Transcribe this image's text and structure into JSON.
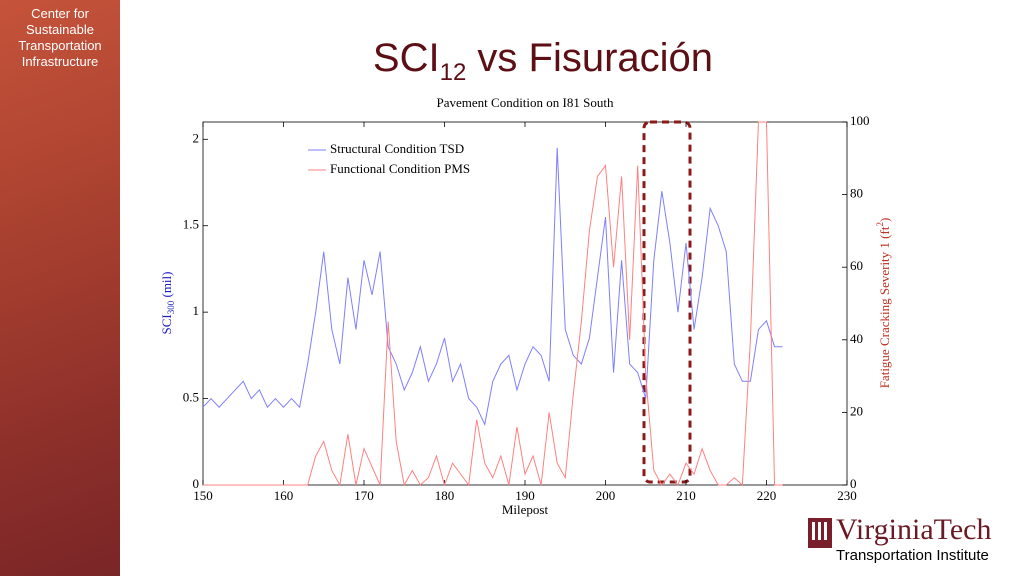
{
  "sidebar": {
    "text": "Center for Sustainable Transportation Infrastructure"
  },
  "slide_title": {
    "main": "SCI",
    "sub": "12",
    "rest": " vs Fisuración"
  },
  "logo": {
    "name": "VirginiaTech",
    "unit": "Transportation Institute"
  },
  "chart_data": {
    "type": "line",
    "title": "Pavement Condition on I81 South",
    "x_label": "Milepost",
    "y_label": {
      "main": "SCI",
      "sub": "300",
      "rest": " (mil)"
    },
    "y2_label": {
      "main": "Fatigue Cracking Severity 1 (ft",
      "sup": "2",
      "rest": ")"
    },
    "x": [
      150,
      151,
      152,
      153,
      154,
      155,
      156,
      157,
      158,
      159,
      160,
      161,
      162,
      163,
      164,
      165,
      166,
      167,
      168,
      169,
      170,
      171,
      172,
      173,
      174,
      175,
      176,
      177,
      178,
      179,
      180,
      181,
      182,
      183,
      184,
      185,
      186,
      187,
      188,
      189,
      190,
      191,
      192,
      193,
      194,
      195,
      196,
      197,
      198,
      199,
      200,
      201,
      202,
      203,
      204,
      205,
      206,
      207,
      208,
      209,
      210,
      211,
      212,
      213,
      214,
      215,
      216,
      217,
      218,
      219,
      220,
      221,
      222
    ],
    "series": [
      {
        "name": "Structural Condition TSD",
        "color": "#7f7fff",
        "values": [
          0.45,
          0.5,
          0.45,
          0.5,
          0.55,
          0.6,
          0.5,
          0.55,
          0.45,
          0.5,
          0.45,
          0.5,
          0.45,
          0.7,
          1.0,
          1.35,
          0.9,
          0.7,
          1.2,
          0.9,
          1.3,
          1.1,
          1.35,
          0.8,
          0.7,
          0.55,
          0.65,
          0.8,
          0.6,
          0.7,
          0.85,
          0.6,
          0.7,
          0.5,
          0.45,
          0.35,
          0.6,
          0.7,
          0.75,
          0.55,
          0.7,
          0.8,
          0.75,
          0.6,
          1.95,
          0.9,
          0.75,
          0.7,
          0.85,
          1.2,
          1.55,
          0.65,
          1.3,
          0.7,
          0.65,
          0.5,
          1.3,
          1.7,
          1.4,
          1.0,
          1.4,
          0.9,
          1.2,
          1.6,
          1.5,
          1.35,
          0.7,
          0.6,
          0.6,
          0.9,
          0.95,
          0.8,
          0.8
        ]
      },
      {
        "name": "Functional Condition PMS",
        "color": "#ff8080",
        "axis": "y2",
        "values": [
          0,
          0,
          0,
          0,
          0,
          0,
          0,
          0,
          0,
          0,
          0,
          0,
          0,
          0,
          8,
          12,
          4,
          0,
          14,
          0,
          10,
          5,
          0,
          45,
          12,
          0,
          4,
          0,
          2,
          8,
          0,
          6,
          3,
          0,
          18,
          6,
          2,
          8,
          0,
          16,
          3,
          8,
          0,
          20,
          6,
          2,
          25,
          45,
          70,
          85,
          88,
          60,
          85,
          40,
          88,
          30,
          4,
          0,
          3,
          0,
          6,
          3,
          10,
          4,
          0,
          0,
          2,
          0,
          40,
          100,
          100,
          0,
          0
        ]
      }
    ],
    "xlim": [
      150,
      230
    ],
    "xticks": [
      150,
      160,
      170,
      180,
      190,
      200,
      210,
      220,
      230
    ],
    "ylim": [
      0,
      2.1
    ],
    "yticks": [
      0,
      0.5,
      1,
      1.5,
      2
    ],
    "y2lim": [
      0,
      100
    ],
    "y2ticks": [
      0,
      20,
      40,
      60,
      80,
      100
    ],
    "legend": "upper left"
  }
}
